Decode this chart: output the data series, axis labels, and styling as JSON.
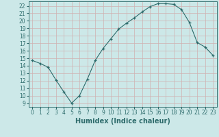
{
  "x": [
    0,
    1,
    2,
    3,
    4,
    5,
    6,
    7,
    8,
    9,
    10,
    11,
    12,
    13,
    14,
    15,
    16,
    17,
    18,
    19,
    20,
    21,
    22,
    23
  ],
  "y": [
    14.7,
    14.3,
    13.8,
    12.1,
    10.5,
    9.0,
    10.0,
    12.2,
    14.7,
    16.3,
    17.6,
    18.9,
    19.7,
    20.4,
    21.2,
    21.9,
    22.3,
    22.3,
    22.2,
    21.5,
    19.8,
    17.1,
    16.5,
    15.4
  ],
  "bg_color": "#cce8e8",
  "grid_color": "#b0d0d0",
  "line_color": "#2d6b6b",
  "marker_color": "#2d6b6b",
  "xlabel": "Humidex (Indice chaleur)",
  "ylim_min": 8.5,
  "ylim_max": 22.6,
  "xlim_min": -0.5,
  "xlim_max": 23.5,
  "yticks": [
    9,
    10,
    11,
    12,
    13,
    14,
    15,
    16,
    17,
    18,
    19,
    20,
    21,
    22
  ],
  "xticks": [
    0,
    1,
    2,
    3,
    4,
    5,
    6,
    7,
    8,
    9,
    10,
    11,
    12,
    13,
    14,
    15,
    16,
    17,
    18,
    19,
    20,
    21,
    22,
    23
  ],
  "tick_fontsize": 5.5,
  "xlabel_fontsize": 7.0
}
